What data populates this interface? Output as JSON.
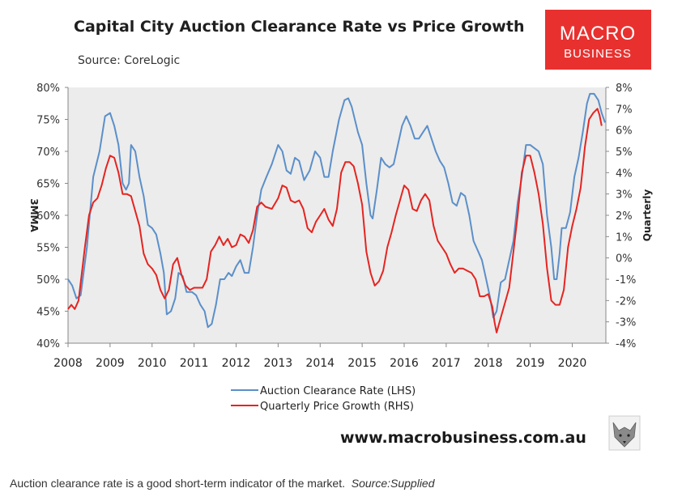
{
  "chart_data": {
    "type": "line",
    "title": "Capital City Auction Clearance Rate vs Price Growth",
    "subtitle": "Source: CoreLogic",
    "ylabel_left": "3MMA",
    "ylabel_right": "Quarterly",
    "x_ticks": [
      "2008",
      "2009",
      "2010",
      "2011",
      "2012",
      "2013",
      "2014",
      "2015",
      "2016",
      "2017",
      "2018",
      "2019",
      "2020"
    ],
    "xlim": [
      2008,
      2020.8
    ],
    "y_left": {
      "ticks": [
        "80%",
        "75%",
        "70%",
        "65%",
        "60%",
        "55%",
        "50%",
        "45%",
        "40%"
      ],
      "range": [
        40,
        80
      ]
    },
    "y_right": {
      "ticks": [
        "8%",
        "7%",
        "6%",
        "5%",
        "4%",
        "3%",
        "2%",
        "1%",
        "0%",
        "-1%",
        "-2%",
        "-3%",
        "-4%"
      ],
      "range": [
        -4,
        8
      ]
    },
    "series": [
      {
        "name": "Auction Clearance Rate (LHS)",
        "axis": "left",
        "color": "#5b8fc9",
        "points": [
          [
            2008.0,
            50
          ],
          [
            2008.1,
            49
          ],
          [
            2008.2,
            47
          ],
          [
            2008.3,
            47.5
          ],
          [
            2008.45,
            55
          ],
          [
            2008.6,
            66
          ],
          [
            2008.75,
            70
          ],
          [
            2008.88,
            75.5
          ],
          [
            2009.0,
            76
          ],
          [
            2009.1,
            74
          ],
          [
            2009.2,
            71
          ],
          [
            2009.3,
            65
          ],
          [
            2009.38,
            64
          ],
          [
            2009.45,
            65
          ],
          [
            2009.5,
            71
          ],
          [
            2009.6,
            70
          ],
          [
            2009.7,
            66
          ],
          [
            2009.8,
            63
          ],
          [
            2009.9,
            58.5
          ],
          [
            2010.0,
            58
          ],
          [
            2010.1,
            57
          ],
          [
            2010.2,
            54
          ],
          [
            2010.28,
            51
          ],
          [
            2010.35,
            44.5
          ],
          [
            2010.45,
            45
          ],
          [
            2010.55,
            47
          ],
          [
            2010.63,
            51
          ],
          [
            2010.73,
            50.5
          ],
          [
            2010.82,
            48
          ],
          [
            2010.95,
            48
          ],
          [
            2011.05,
            47.5
          ],
          [
            2011.15,
            46
          ],
          [
            2011.25,
            45
          ],
          [
            2011.33,
            42.5
          ],
          [
            2011.42,
            43
          ],
          [
            2011.52,
            46
          ],
          [
            2011.62,
            50
          ],
          [
            2011.72,
            50
          ],
          [
            2011.82,
            51
          ],
          [
            2011.9,
            50.5
          ],
          [
            2012.0,
            52
          ],
          [
            2012.1,
            53
          ],
          [
            2012.2,
            51
          ],
          [
            2012.3,
            51
          ],
          [
            2012.4,
            55
          ],
          [
            2012.5,
            60
          ],
          [
            2012.6,
            64
          ],
          [
            2012.72,
            66
          ],
          [
            2012.85,
            68
          ],
          [
            2013.0,
            71
          ],
          [
            2013.1,
            70
          ],
          [
            2013.2,
            67
          ],
          [
            2013.3,
            66.5
          ],
          [
            2013.4,
            69
          ],
          [
            2013.5,
            68.5
          ],
          [
            2013.62,
            65.5
          ],
          [
            2013.75,
            67
          ],
          [
            2013.88,
            70
          ],
          [
            2014.0,
            69
          ],
          [
            2014.1,
            66
          ],
          [
            2014.2,
            66
          ],
          [
            2014.3,
            70
          ],
          [
            2014.45,
            75
          ],
          [
            2014.58,
            78
          ],
          [
            2014.67,
            78.3
          ],
          [
            2014.75,
            77
          ],
          [
            2014.9,
            73
          ],
          [
            2015.0,
            71
          ],
          [
            2015.1,
            65
          ],
          [
            2015.2,
            60
          ],
          [
            2015.25,
            59.5
          ],
          [
            2015.35,
            64
          ],
          [
            2015.45,
            69
          ],
          [
            2015.55,
            68
          ],
          [
            2015.65,
            67.5
          ],
          [
            2015.75,
            68
          ],
          [
            2015.85,
            71
          ],
          [
            2015.95,
            74
          ],
          [
            2016.05,
            75.5
          ],
          [
            2016.15,
            74
          ],
          [
            2016.25,
            72
          ],
          [
            2016.35,
            72
          ],
          [
            2016.45,
            73
          ],
          [
            2016.55,
            74
          ],
          [
            2016.65,
            72
          ],
          [
            2016.75,
            70
          ],
          [
            2016.85,
            68.5
          ],
          [
            2016.95,
            67.5
          ],
          [
            2017.05,
            65
          ],
          [
            2017.15,
            62
          ],
          [
            2017.25,
            61.5
          ],
          [
            2017.35,
            63.5
          ],
          [
            2017.45,
            63
          ],
          [
            2017.55,
            60
          ],
          [
            2017.65,
            56
          ],
          [
            2017.75,
            54.5
          ],
          [
            2017.85,
            53
          ],
          [
            2017.95,
            50
          ],
          [
            2018.05,
            47
          ],
          [
            2018.12,
            44
          ],
          [
            2018.2,
            45
          ],
          [
            2018.3,
            49.5
          ],
          [
            2018.4,
            50
          ],
          [
            2018.5,
            53
          ],
          [
            2018.6,
            56
          ],
          [
            2018.7,
            62
          ],
          [
            2018.8,
            66
          ],
          [
            2018.9,
            71
          ],
          [
            2019.0,
            71
          ],
          [
            2019.1,
            70.5
          ],
          [
            2019.2,
            70
          ],
          [
            2019.3,
            68
          ],
          [
            2019.4,
            60
          ],
          [
            2019.5,
            55
          ],
          [
            2019.57,
            50
          ],
          [
            2019.63,
            50
          ],
          [
            2019.7,
            54
          ],
          [
            2019.75,
            58
          ],
          [
            2019.85,
            58
          ],
          [
            2019.95,
            60.5
          ],
          [
            2020.05,
            66
          ],
          [
            2020.15,
            69
          ],
          [
            2020.25,
            73
          ],
          [
            2020.35,
            77.5
          ],
          [
            2020.42,
            79
          ],
          [
            2020.52,
            79
          ],
          [
            2020.62,
            78
          ],
          [
            2020.7,
            76
          ],
          [
            2020.78,
            74.5
          ]
        ]
      },
      {
        "name": "Quarterly Price Growth (RHS)",
        "axis": "right",
        "color": "#e52421",
        "points": [
          [
            2008.0,
            -2.4
          ],
          [
            2008.08,
            -2.2
          ],
          [
            2008.16,
            -2.4
          ],
          [
            2008.25,
            -2.0
          ],
          [
            2008.4,
            0.5
          ],
          [
            2008.5,
            2.0
          ],
          [
            2008.6,
            2.6
          ],
          [
            2008.7,
            2.8
          ],
          [
            2008.8,
            3.4
          ],
          [
            2008.9,
            4.2
          ],
          [
            2009.0,
            4.8
          ],
          [
            2009.1,
            4.7
          ],
          [
            2009.2,
            4.0
          ],
          [
            2009.3,
            3.0
          ],
          [
            2009.4,
            3.0
          ],
          [
            2009.5,
            2.9
          ],
          [
            2009.6,
            2.2
          ],
          [
            2009.7,
            1.5
          ],
          [
            2009.8,
            0.2
          ],
          [
            2009.9,
            -0.3
          ],
          [
            2010.0,
            -0.5
          ],
          [
            2010.1,
            -0.8
          ],
          [
            2010.2,
            -1.5
          ],
          [
            2010.3,
            -1.9
          ],
          [
            2010.4,
            -1.5
          ],
          [
            2010.5,
            -0.3
          ],
          [
            2010.6,
            0
          ],
          [
            2010.7,
            -0.8
          ],
          [
            2010.8,
            -1.3
          ],
          [
            2010.9,
            -1.5
          ],
          [
            2011.0,
            -1.4
          ],
          [
            2011.1,
            -1.4
          ],
          [
            2011.2,
            -1.4
          ],
          [
            2011.3,
            -1.0
          ],
          [
            2011.4,
            0.3
          ],
          [
            2011.5,
            0.6
          ],
          [
            2011.6,
            1.0
          ],
          [
            2011.7,
            0.6
          ],
          [
            2011.8,
            0.9
          ],
          [
            2011.9,
            0.5
          ],
          [
            2012.0,
            0.6
          ],
          [
            2012.1,
            1.1
          ],
          [
            2012.2,
            1.0
          ],
          [
            2012.3,
            0.7
          ],
          [
            2012.4,
            1.3
          ],
          [
            2012.5,
            2.4
          ],
          [
            2012.6,
            2.6
          ],
          [
            2012.7,
            2.4
          ],
          [
            2012.85,
            2.3
          ],
          [
            2013.0,
            2.8
          ],
          [
            2013.1,
            3.4
          ],
          [
            2013.2,
            3.3
          ],
          [
            2013.3,
            2.7
          ],
          [
            2013.4,
            2.6
          ],
          [
            2013.5,
            2.7
          ],
          [
            2013.6,
            2.3
          ],
          [
            2013.7,
            1.4
          ],
          [
            2013.8,
            1.2
          ],
          [
            2013.9,
            1.7
          ],
          [
            2014.0,
            2.0
          ],
          [
            2014.1,
            2.3
          ],
          [
            2014.2,
            1.8
          ],
          [
            2014.3,
            1.5
          ],
          [
            2014.4,
            2.3
          ],
          [
            2014.5,
            4.0
          ],
          [
            2014.6,
            4.5
          ],
          [
            2014.7,
            4.5
          ],
          [
            2014.8,
            4.3
          ],
          [
            2014.9,
            3.5
          ],
          [
            2015.0,
            2.5
          ],
          [
            2015.1,
            0.3
          ],
          [
            2015.2,
            -0.7
          ],
          [
            2015.3,
            -1.3
          ],
          [
            2015.4,
            -1.1
          ],
          [
            2015.5,
            -0.6
          ],
          [
            2015.6,
            0.5
          ],
          [
            2015.7,
            1.2
          ],
          [
            2015.8,
            2.0
          ],
          [
            2015.9,
            2.7
          ],
          [
            2016.0,
            3.4
          ],
          [
            2016.1,
            3.2
          ],
          [
            2016.2,
            2.3
          ],
          [
            2016.3,
            2.2
          ],
          [
            2016.4,
            2.7
          ],
          [
            2016.5,
            3.0
          ],
          [
            2016.6,
            2.7
          ],
          [
            2016.7,
            1.5
          ],
          [
            2016.8,
            0.8
          ],
          [
            2016.9,
            0.5
          ],
          [
            2017.0,
            0.2
          ],
          [
            2017.1,
            -0.3
          ],
          [
            2017.2,
            -0.7
          ],
          [
            2017.3,
            -0.5
          ],
          [
            2017.4,
            -0.5
          ],
          [
            2017.5,
            -0.6
          ],
          [
            2017.6,
            -0.7
          ],
          [
            2017.7,
            -1.0
          ],
          [
            2017.8,
            -1.8
          ],
          [
            2017.9,
            -1.8
          ],
          [
            2018.0,
            -1.7
          ],
          [
            2018.1,
            -2.3
          ],
          [
            2018.15,
            -3.0
          ],
          [
            2018.2,
            -3.5
          ],
          [
            2018.3,
            -2.8
          ],
          [
            2018.4,
            -2.1
          ],
          [
            2018.5,
            -1.4
          ],
          [
            2018.6,
            0.3
          ],
          [
            2018.7,
            2.0
          ],
          [
            2018.8,
            4.0
          ],
          [
            2018.9,
            4.8
          ],
          [
            2019.0,
            4.8
          ],
          [
            2019.1,
            4.0
          ],
          [
            2019.2,
            3.0
          ],
          [
            2019.3,
            1.6
          ],
          [
            2019.4,
            -0.5
          ],
          [
            2019.5,
            -2.0
          ],
          [
            2019.6,
            -2.2
          ],
          [
            2019.7,
            -2.2
          ],
          [
            2019.8,
            -1.5
          ],
          [
            2019.9,
            0.5
          ],
          [
            2020.0,
            1.5
          ],
          [
            2020.1,
            2.3
          ],
          [
            2020.2,
            3.3
          ],
          [
            2020.3,
            5.2
          ],
          [
            2020.4,
            6.5
          ],
          [
            2020.5,
            6.8
          ],
          [
            2020.6,
            7.0
          ],
          [
            2020.65,
            6.7
          ],
          [
            2020.7,
            6.2
          ]
        ]
      }
    ],
    "legend": {
      "position": "bottom-center",
      "entries": [
        "Auction Clearance Rate (LHS)",
        "Quarterly Price Growth (RHS)"
      ]
    }
  },
  "branding": {
    "logo_line1": "MACRO",
    "logo_line2": "BUSINESS",
    "logo_color": "#e8312f",
    "website": "www.macrobusiness.com.au"
  },
  "caption": {
    "text": "Auction clearance rate is a good short-term indicator of the market.",
    "source": "Source:Supplied"
  }
}
